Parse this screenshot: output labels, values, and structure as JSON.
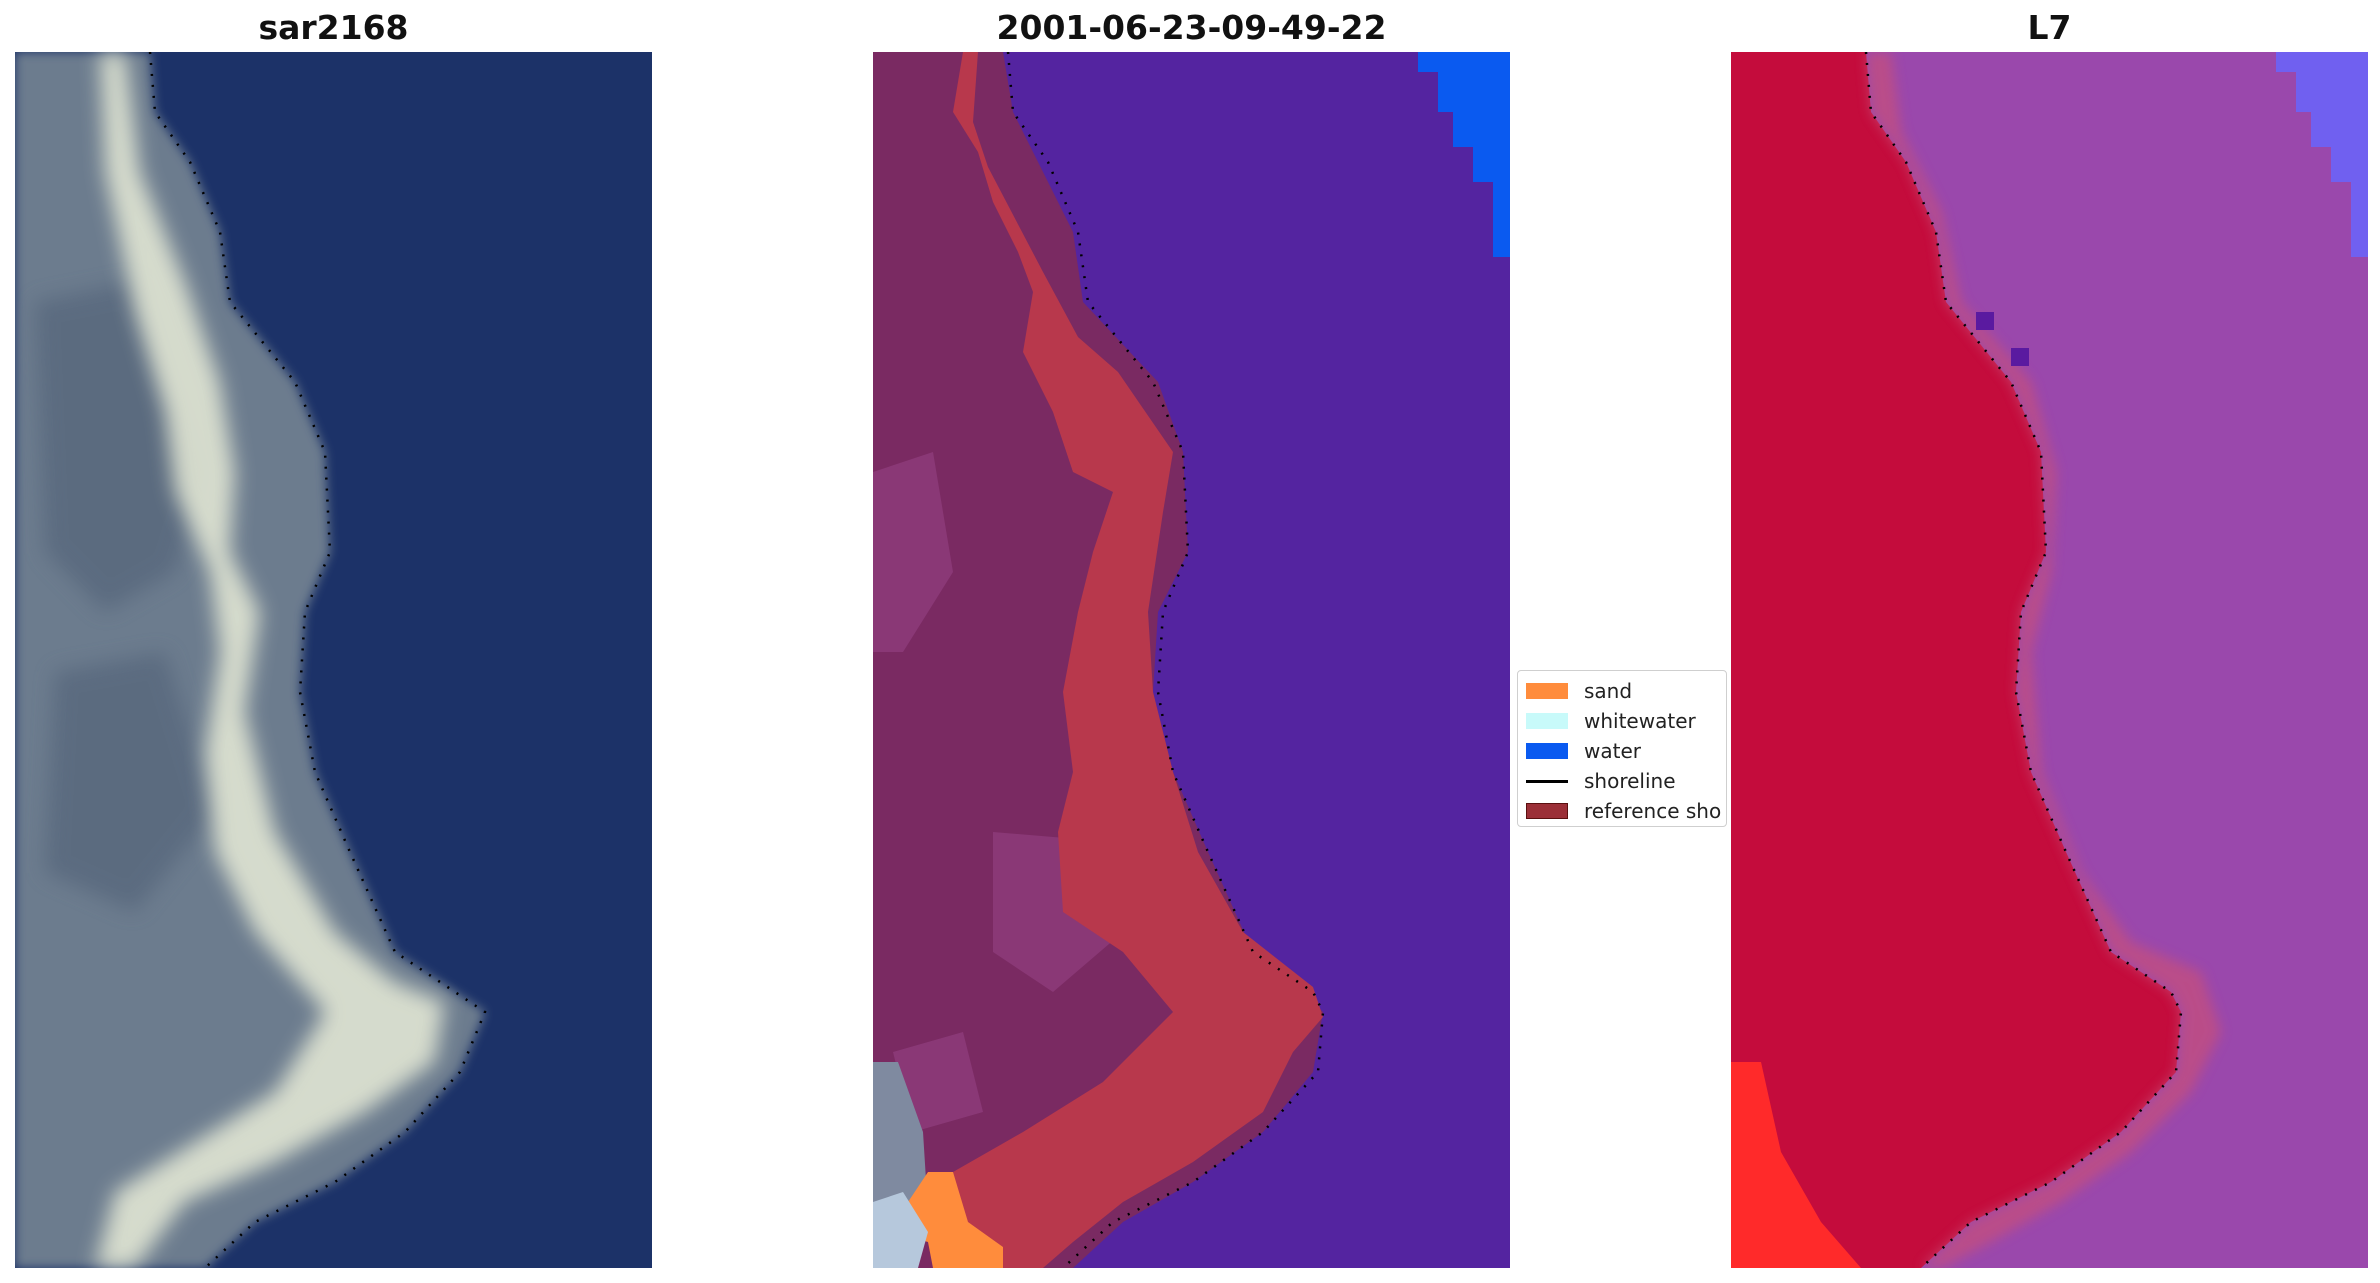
{
  "panels": [
    {
      "title": "sar2168"
    },
    {
      "title": "2001-06-23-09-49-22"
    },
    {
      "title": "L7"
    }
  ],
  "legend": {
    "items": [
      {
        "label": "sand",
        "color": "#ff8c3c",
        "kind": "patch"
      },
      {
        "label": "whitewater",
        "color": "#c8fafa",
        "kind": "patch"
      },
      {
        "label": "water",
        "color": "#0a5af0",
        "kind": "patch"
      },
      {
        "label": "shoreline",
        "color": "#000000",
        "kind": "line"
      },
      {
        "label": "reference sho",
        "color": "#9b2f37",
        "kind": "patch"
      }
    ]
  },
  "colors": {
    "rgb_water": "#1c3268",
    "rgb_land": "#6c7c8e",
    "rgb_surf": "#e8ecd8",
    "class_water": "#5424a0",
    "class_land": "#7a2a62",
    "class_land_light": "#8e3c7c",
    "class_band": "#b8384c",
    "class_grey": "#7f8aa0",
    "class_blue": "#0a5af0",
    "class_sand": "#ff8c3c",
    "ir_land": "#c40c3c",
    "ir_water": "#9a48ac",
    "ir_red": "#ff2a2a",
    "ir_blue": "#7060f0"
  }
}
